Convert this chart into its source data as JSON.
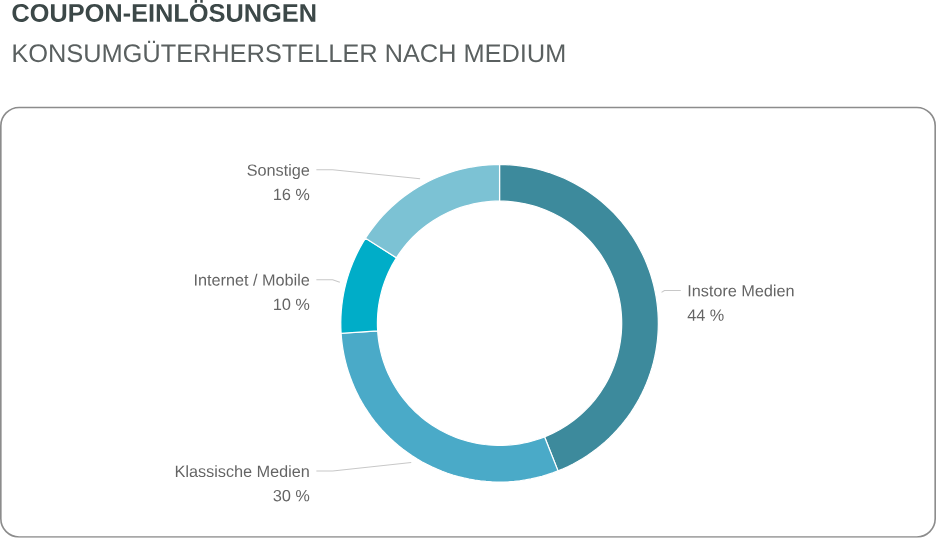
{
  "chart_data": {
    "type": "donut",
    "title": "COUPON-EINLÖSUNGEN",
    "subtitle": "KONSUMGÜTERHERSTELLER NACH MEDIUM",
    "categories": [
      "Instore Medien",
      "Klassische Medien",
      "Internet / Mobile",
      "Sonstige"
    ],
    "values": [
      44,
      30,
      10,
      16
    ],
    "value_labels": [
      "44 %",
      "30 %",
      "10 %",
      "16 %"
    ],
    "colors": [
      "#3d8a9c",
      "#4aaac8",
      "#00adc8",
      "#7cc2d4"
    ]
  }
}
